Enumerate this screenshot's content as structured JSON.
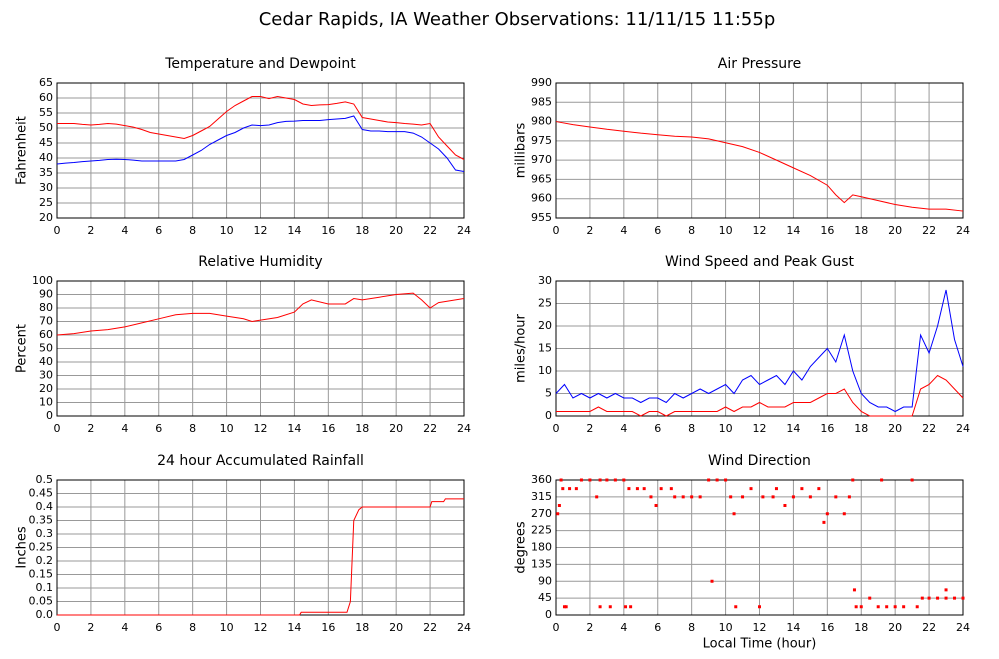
{
  "title": "Cedar Rapids, IA Weather Observations: 11/11/15 11:55p",
  "chart_data": [
    {
      "type": "line",
      "title": "Temperature and Dewpoint",
      "ylabel": "Fahrenheit",
      "x": [
        0,
        0.5,
        1,
        1.5,
        2,
        2.5,
        3,
        3.5,
        4,
        4.5,
        5,
        5.5,
        6,
        6.5,
        7,
        7.5,
        8,
        8.5,
        9,
        9.5,
        10,
        10.5,
        11,
        11.5,
        12,
        12.5,
        13,
        13.5,
        14,
        14.5,
        15,
        15.5,
        16,
        16.5,
        17,
        17.5,
        18,
        18.5,
        19,
        19.5,
        20,
        20.5,
        21,
        21.5,
        22,
        22.5,
        23,
        23.5,
        24
      ],
      "series": [
        {
          "color": "#ff0000",
          "values": [
            51.5,
            51.5,
            51.5,
            51.2,
            51,
            51.2,
            51.5,
            51.3,
            50.8,
            50.3,
            49.5,
            48.5,
            48,
            47.5,
            47,
            46.5,
            47.5,
            49,
            50.5,
            53,
            55.5,
            57.5,
            59,
            60.5,
            60.5,
            59.8,
            60.5,
            60,
            59.5,
            58,
            57.5,
            57.7,
            57.8,
            58.2,
            58.7,
            58,
            53.5,
            53,
            52.5,
            52,
            51.8,
            51.5,
            51.3,
            51,
            51.5,
            47,
            44,
            41,
            39.5
          ]
        },
        {
          "color": "#0000ff",
          "values": [
            38,
            38.3,
            38.5,
            38.8,
            39,
            39.2,
            39.5,
            39.6,
            39.5,
            39.3,
            39,
            39,
            39,
            39,
            39,
            39.5,
            41,
            42.5,
            44.5,
            46,
            47.5,
            48.5,
            50,
            51,
            50.8,
            51,
            51.8,
            52.2,
            52.3,
            52.5,
            52.5,
            52.5,
            52.8,
            53,
            53.2,
            54,
            49.5,
            49,
            49,
            48.8,
            48.8,
            48.8,
            48.3,
            47,
            45,
            43,
            40,
            36,
            35.5
          ]
        }
      ],
      "xlim": [
        0,
        24
      ],
      "xticks": [
        0,
        2,
        4,
        6,
        8,
        10,
        12,
        14,
        16,
        18,
        20,
        22,
        24
      ],
      "ylim": [
        20,
        65
      ],
      "yticks": [
        20,
        25,
        30,
        35,
        40,
        45,
        50,
        55,
        60,
        65
      ],
      "grid": true
    },
    {
      "type": "line",
      "title": "Air Pressure",
      "ylabel": "millibars",
      "x": [
        0,
        1,
        2,
        3,
        4,
        5,
        6,
        7,
        8,
        9,
        10,
        11,
        12,
        13,
        14,
        15,
        16,
        16.5,
        17,
        17.5,
        18,
        19,
        20,
        21,
        22,
        23,
        24
      ],
      "series": [
        {
          "color": "#ff0000",
          "values": [
            980,
            979.2,
            978.6,
            978,
            977.5,
            977,
            976.6,
            976.2,
            976,
            975.5,
            974.5,
            973.5,
            972,
            970,
            968,
            966,
            963.5,
            961,
            959,
            961,
            960.5,
            959.5,
            958.5,
            957.8,
            957.3,
            957.3,
            956.8
          ]
        }
      ],
      "xlim": [
        0,
        24
      ],
      "xticks": [
        0,
        2,
        4,
        6,
        8,
        10,
        12,
        14,
        16,
        18,
        20,
        22,
        24
      ],
      "ylim": [
        955,
        990
      ],
      "yticks": [
        955,
        960,
        965,
        970,
        975,
        980,
        985,
        990
      ],
      "grid": true
    },
    {
      "type": "line",
      "title": "Relative Humidity",
      "ylabel": "Percent",
      "x": [
        0,
        1,
        2,
        3,
        4,
        5,
        6,
        7,
        8,
        9,
        10,
        11,
        11.5,
        12,
        13,
        14,
        14.5,
        15,
        16,
        17,
        17.5,
        18,
        19,
        20,
        21,
        21.5,
        22,
        22.5,
        23,
        24
      ],
      "series": [
        {
          "color": "#ff0000",
          "values": [
            60,
            61,
            63,
            64,
            66,
            69,
            72,
            75,
            76,
            76,
            74,
            72,
            70,
            71,
            73,
            77,
            83,
            86,
            83,
            83,
            87,
            86,
            88,
            90,
            91,
            86,
            80,
            84,
            85,
            87
          ]
        }
      ],
      "xlim": [
        0,
        24
      ],
      "xticks": [
        0,
        2,
        4,
        6,
        8,
        10,
        12,
        14,
        16,
        18,
        20,
        22,
        24
      ],
      "ylim": [
        0,
        100
      ],
      "yticks": [
        0,
        10,
        20,
        30,
        40,
        50,
        60,
        70,
        80,
        90,
        100
      ],
      "grid": true
    },
    {
      "type": "line",
      "title": "Wind Speed and Peak Gust",
      "ylabel": "miles/hour",
      "x": [
        0,
        0.5,
        1,
        1.5,
        2,
        2.5,
        3,
        3.5,
        4,
        4.5,
        5,
        5.5,
        6,
        6.5,
        7,
        7.5,
        8,
        8.5,
        9,
        9.5,
        10,
        10.5,
        11,
        11.5,
        12,
        12.5,
        13,
        13.5,
        14,
        14.5,
        15,
        15.5,
        16,
        16.5,
        17,
        17.5,
        18,
        18.5,
        19,
        19.5,
        20,
        20.5,
        21,
        21.5,
        22,
        22.5,
        23,
        23.5,
        24
      ],
      "series": [
        {
          "color": "#0000ff",
          "values": [
            5,
            7,
            4,
            5,
            4,
            5,
            4,
            5,
            4,
            4,
            3,
            4,
            4,
            3,
            5,
            4,
            5,
            6,
            5,
            6,
            7,
            5,
            8,
            9,
            7,
            8,
            9,
            7,
            10,
            8,
            11,
            13,
            15,
            12,
            18,
            10,
            5,
            3,
            2,
            2,
            1,
            2,
            2,
            18,
            14,
            20,
            28,
            17,
            11
          ]
        },
        {
          "color": "#ff0000",
          "values": [
            1,
            1,
            1,
            1,
            1,
            2,
            1,
            1,
            1,
            1,
            0,
            1,
            1,
            0,
            1,
            1,
            1,
            1,
            1,
            1,
            2,
            1,
            2,
            2,
            3,
            2,
            2,
            2,
            3,
            3,
            3,
            4,
            5,
            5,
            6,
            3,
            1,
            0,
            0,
            0,
            0,
            0,
            0,
            6,
            7,
            9,
            8,
            6,
            4
          ]
        }
      ],
      "xlim": [
        0,
        24
      ],
      "xticks": [
        0,
        2,
        4,
        6,
        8,
        10,
        12,
        14,
        16,
        18,
        20,
        22,
        24
      ],
      "ylim": [
        0,
        30
      ],
      "yticks": [
        0,
        5,
        10,
        15,
        20,
        25,
        30
      ],
      "grid": true
    },
    {
      "type": "line",
      "title": "24 hour Accumulated Rainfall",
      "ylabel": "Inches",
      "x": [
        0,
        14.3,
        14.4,
        17.1,
        17.3,
        17.5,
        17.8,
        18,
        22,
        22.1,
        22.8,
        22.9,
        24
      ],
      "series": [
        {
          "color": "#ff0000",
          "values": [
            0,
            0,
            0.01,
            0.01,
            0.05,
            0.35,
            0.39,
            0.4,
            0.4,
            0.42,
            0.42,
            0.43,
            0.43
          ]
        }
      ],
      "xlim": [
        0,
        24
      ],
      "xticks": [
        0,
        2,
        4,
        6,
        8,
        10,
        12,
        14,
        16,
        18,
        20,
        22,
        24
      ],
      "ylim": [
        0,
        0.5
      ],
      "yticks": [
        {
          "value": 0,
          "label": "0.0"
        },
        0.05,
        0.1,
        0.15,
        0.2,
        0.25,
        0.3,
        0.35,
        0.4,
        0.45,
        0.5
      ],
      "grid": true
    },
    {
      "type": "scatter",
      "title": "Wind Direction",
      "ylabel": "degrees",
      "xlabel": "Local Time (hour)",
      "x": [
        0.1,
        0.2,
        0.3,
        0.4,
        0.5,
        0.6,
        0.8,
        1.2,
        1.5,
        2,
        2.4,
        2.6,
        3,
        3.5,
        4,
        4.3,
        2.6,
        3.2,
        4.1,
        4.4,
        4.8,
        5.2,
        5.6,
        5.9,
        6.2,
        6.8,
        7,
        7.5,
        8,
        8.5,
        9,
        9.2,
        9.5,
        10,
        10.3,
        10.5,
        10.6,
        11,
        11.5,
        12,
        12.2,
        12.8,
        13,
        13.5,
        14,
        14.5,
        15,
        15.5,
        15.8,
        16,
        16.5,
        17,
        17.3,
        17.5,
        17.6,
        17.7,
        18,
        18.5,
        19,
        19.2,
        19.5,
        20,
        20.5,
        21,
        21.3,
        21.6,
        22,
        22.5,
        23,
        23,
        23.5,
        24
      ],
      "series": [
        {
          "color": "#ff0000",
          "values": [
            270,
            292,
            360,
            337,
            22,
            22,
            337,
            337,
            360,
            360,
            315,
            360,
            360,
            360,
            360,
            337,
            22,
            22,
            22,
            22,
            337,
            337,
            315,
            292,
            337,
            337,
            315,
            315,
            315,
            315,
            360,
            90,
            360,
            360,
            315,
            270,
            22,
            315,
            337,
            22,
            315,
            315,
            337,
            292,
            315,
            337,
            315,
            337,
            247,
            270,
            315,
            270,
            315,
            360,
            67,
            22,
            22,
            45,
            22,
            360,
            22,
            22,
            22,
            360,
            22,
            45,
            45,
            45,
            67,
            45,
            45,
            45
          ]
        }
      ],
      "xlim": [
        0,
        24
      ],
      "xticks": [
        0,
        2,
        4,
        6,
        8,
        10,
        12,
        14,
        16,
        18,
        20,
        22,
        24
      ],
      "ylim": [
        0,
        360
      ],
      "yticks": [
        0,
        45,
        90,
        135,
        180,
        225,
        270,
        315,
        360
      ],
      "grid": true
    }
  ]
}
